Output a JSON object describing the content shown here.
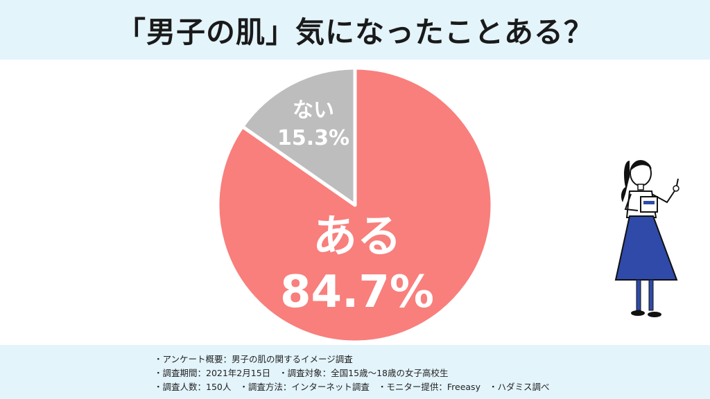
{
  "header": {
    "title": "「男子の肌」気になったことある？"
  },
  "chart_data": {
    "type": "pie",
    "title": "「男子の肌」気になったことある？",
    "slices": [
      {
        "label": "ある",
        "value": 84.7,
        "display": "84.7%",
        "color": "#f87f7c"
      },
      {
        "label": "ない",
        "value": 15.3,
        "display": "15.3%",
        "color": "#bdbdbd"
      }
    ],
    "start": "12 o'clock",
    "direction": "clockwise"
  },
  "footer": {
    "line1": "・アンケート概要：男子の肌の関するイメージ調査",
    "line2a": "・調査期間：2021年2月15日",
    "line2b": "・調査対象：全国15歳〜18歳の女子高校生",
    "line3a": "・調査人数：150人",
    "line3b": "・調査方法：インターネット調査",
    "line3c": "・モニター提供：Freeasy",
    "line3d": "・ハダミス調べ"
  },
  "colors": {
    "band": "#e3f4fb",
    "dress": "#2f4aa8",
    "hair": "#111111"
  }
}
